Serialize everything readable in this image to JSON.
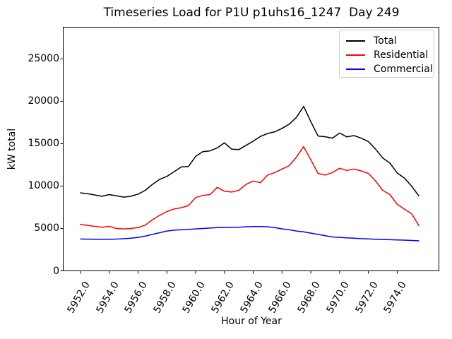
{
  "chart_data": {
    "type": "line",
    "title": "Timeseries Load for P1U p1uhs16_1247  Day 249",
    "xlabel": "Hour of Year",
    "ylabel": "kW total",
    "xlim": [
      5950.8,
      5976.9
    ],
    "ylim": [
      0,
      28740
    ],
    "xticks": [
      5952,
      5954,
      5956,
      5958,
      5960,
      5962,
      5964,
      5966,
      5968,
      5970,
      5972,
      5974
    ],
    "xtick_labels": [
      "5952.0",
      "5954.0",
      "5956.0",
      "5958.0",
      "5960.0",
      "5962.0",
      "5964.0",
      "5966.0",
      "5968.0",
      "5970.0",
      "5972.0",
      "5974.0"
    ],
    "yticks": [
      0,
      5000,
      10000,
      15000,
      20000,
      25000
    ],
    "ytick_labels": [
      "0",
      "5000",
      "10000",
      "15000",
      "20000",
      "25000"
    ],
    "grid": false,
    "legend_position": "upper right",
    "x": [
      5952.0,
      5952.5,
      5953.0,
      5953.5,
      5954.0,
      5954.5,
      5955.0,
      5955.5,
      5956.0,
      5956.5,
      5957.0,
      5957.5,
      5958.0,
      5958.5,
      5959.0,
      5959.5,
      5960.0,
      5960.5,
      5961.0,
      5961.5,
      5962.0,
      5962.5,
      5963.0,
      5963.5,
      5964.0,
      5964.5,
      5965.0,
      5965.5,
      5966.0,
      5966.5,
      5967.0,
      5967.5,
      5968.0,
      5968.5,
      5969.0,
      5969.5,
      5970.0,
      5970.5,
      5971.0,
      5971.5,
      5972.0,
      5972.5,
      5973.0,
      5973.5,
      5974.0,
      5974.5,
      5975.0,
      5975.5
    ],
    "series": [
      {
        "name": "Total",
        "color": "#000000",
        "values": [
          9200,
          9100,
          8950,
          8800,
          9000,
          8850,
          8700,
          8800,
          9050,
          9500,
          10200,
          10800,
          11150,
          11700,
          12250,
          12300,
          13500,
          14050,
          14150,
          14500,
          15100,
          14350,
          14300,
          14800,
          15300,
          15850,
          16200,
          16400,
          16800,
          17300,
          18100,
          19400,
          17600,
          15900,
          15820,
          15650,
          16250,
          15800,
          15950,
          15650,
          15250,
          14350,
          13300,
          12700,
          11550,
          10950,
          10000,
          8850
        ]
      },
      {
        "name": "Residential",
        "color": "#ff0000",
        "values": [
          5480,
          5350,
          5250,
          5150,
          5250,
          5000,
          4950,
          5000,
          5100,
          5400,
          6030,
          6550,
          7000,
          7300,
          7450,
          7700,
          8650,
          8900,
          9000,
          9850,
          9400,
          9300,
          9500,
          10200,
          10600,
          10400,
          11300,
          11600,
          12000,
          12400,
          13400,
          14650,
          13100,
          11500,
          11300,
          11600,
          12100,
          11850,
          12000,
          11800,
          11500,
          10600,
          9500,
          9000,
          7850,
          7280,
          6750,
          5350
        ]
      },
      {
        "name": "Commercial",
        "color": "#0000ff",
        "values": [
          3760,
          3740,
          3720,
          3720,
          3730,
          3750,
          3790,
          3850,
          3950,
          4100,
          4300,
          4500,
          4700,
          4800,
          4850,
          4900,
          4950,
          5000,
          5050,
          5100,
          5120,
          5130,
          5150,
          5200,
          5220,
          5230,
          5200,
          5100,
          4950,
          4850,
          4700,
          4600,
          4450,
          4300,
          4150,
          4000,
          3950,
          3900,
          3850,
          3800,
          3770,
          3730,
          3700,
          3670,
          3650,
          3620,
          3580,
          3540
        ]
      }
    ]
  }
}
